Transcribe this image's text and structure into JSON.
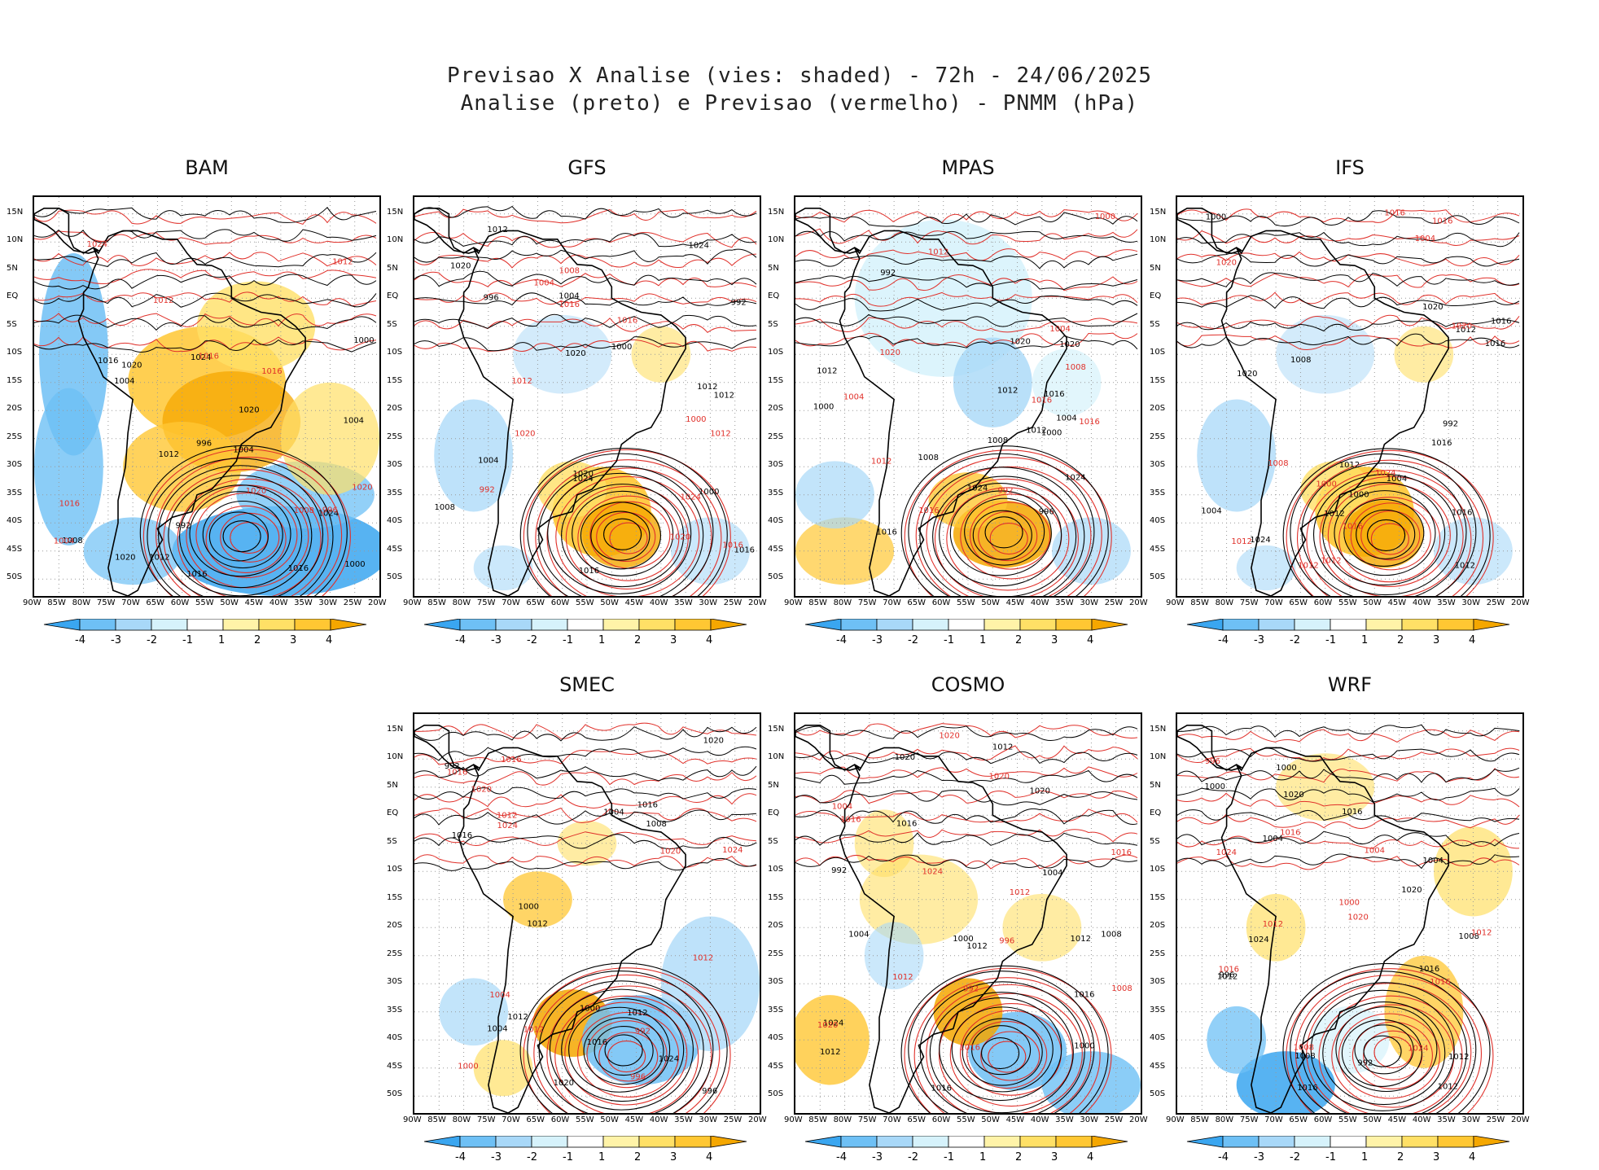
{
  "header": {
    "line1": "Previsao X Analise (vies: shaded) - 72h - 24/06/2025",
    "line2": "Analise (preto) e Previsao (vermelho) - PNMM (hPa)"
  },
  "axes": {
    "lat_labels": [
      "15N",
      "10N",
      "5N",
      "EQ",
      "5S",
      "10S",
      "15S",
      "20S",
      "25S",
      "30S",
      "35S",
      "40S",
      "45S",
      "50S"
    ],
    "lon_labels": [
      "90W",
      "85W",
      "80W",
      "75W",
      "70W",
      "65W",
      "60W",
      "55W",
      "50W",
      "45W",
      "40W",
      "35W",
      "30W",
      "25W",
      "20W"
    ]
  },
  "colorbar": {
    "ticks": [
      "-4",
      "-3",
      "-2",
      "-1",
      "1",
      "2",
      "3",
      "4"
    ],
    "colors": [
      "#3aa6f0",
      "#6ec0f5",
      "#a8d8f8",
      "#d6f2fb",
      "#ffffff",
      "#fff3a8",
      "#ffe066",
      "#ffc733",
      "#f5a700"
    ]
  },
  "colors": {
    "analysis_contour": "#000000",
    "forecast_contour": "#e0302a",
    "negative_bias": "#6ec0f5",
    "positive_bias": "#ffc733"
  },
  "panels": [
    {
      "id": "bam",
      "title": "BAM",
      "bias": "warm-north",
      "isobar_labels": {
        "black": [
          "1012",
          "1016",
          "1016",
          "1020",
          "1020",
          "1024",
          "1012",
          "1016",
          "1008",
          "1004",
          "1004",
          "1000",
          "996",
          "992",
          "1000",
          "1004",
          "1020",
          "1024"
        ],
        "red": [
          "1016",
          "1012",
          "1016",
          "1020",
          "1024",
          "1016",
          "1004",
          "996",
          "1008",
          "1012",
          "1020"
        ]
      }
    },
    {
      "id": "gfs",
      "title": "GFS",
      "bias": "warm-south",
      "isobar_labels": {
        "black": [
          "1012",
          "1016",
          "1012",
          "1020",
          "1020",
          "1024",
          "1020",
          "1008",
          "1004",
          "1000",
          "996",
          "992",
          "1004",
          "1000",
          "1012",
          "1016",
          "1024"
        ],
        "red": [
          "1016",
          "1012",
          "1012",
          "1016",
          "1020",
          "1016",
          "1024",
          "1008",
          "1000",
          "1004",
          "992",
          "1020"
        ]
      }
    },
    {
      "id": "mpas",
      "title": "MPAS",
      "bias": "cool-north",
      "isobar_labels": {
        "black": [
          "1012",
          "1016",
          "1012",
          "1020",
          "1024",
          "1020",
          "1012",
          "1008",
          "1004",
          "992",
          "996",
          "1000",
          "1024",
          "1008",
          "1000",
          "1016"
        ],
        "red": [
          "1016",
          "1012",
          "1016",
          "1012",
          "1020",
          "1000",
          "1004",
          "992",
          "1008",
          "1004",
          "1016"
        ]
      }
    },
    {
      "id": "ifs",
      "title": "IFS",
      "bias": "warm-south",
      "isobar_labels": {
        "black": [
          "1016",
          "1012",
          "1012",
          "1012",
          "1016",
          "1016",
          "1020",
          "1020",
          "1024",
          "1012",
          "1008",
          "1004",
          "1000",
          "992",
          "1004",
          "1000",
          "1016"
        ],
        "red": [
          "1012",
          "1016",
          "1012",
          "1016",
          "1020",
          "1024",
          "1000",
          "1008",
          "1004",
          "1012",
          "1016",
          "1020"
        ]
      }
    },
    {
      "id": "smec",
      "title": "SMEC",
      "bias": "mixed",
      "isobar_labels": {
        "black": [
          "1016",
          "1012",
          "1012",
          "1016",
          "1020",
          "1024",
          "1020",
          "1008",
          "1004",
          "1000",
          "996",
          "992",
          "1004",
          "1000",
          "1016",
          "1012"
        ],
        "red": [
          "1016",
          "1012",
          "1012",
          "1016",
          "1020",
          "1024",
          "1000",
          "1004",
          "996",
          "992",
          "1024",
          "1012",
          "1020"
        ]
      }
    },
    {
      "id": "cosmo",
      "title": "COSMO",
      "bias": "cool-south",
      "isobar_labels": {
        "black": [
          "1012",
          "1016",
          "1012",
          "1016",
          "1012",
          "1020",
          "1024",
          "1020",
          "1008",
          "1004",
          "1000",
          "992",
          "1000",
          "1004",
          "1016",
          "1012"
        ],
        "red": [
          "1016",
          "1012",
          "1012",
          "1016",
          "1020",
          "1024",
          "1020",
          "1008",
          "1004",
          "996",
          "992",
          "1016",
          "1020"
        ]
      }
    },
    {
      "id": "wrf",
      "title": "WRF",
      "bias": "mixed-cool",
      "isobar_labels": {
        "black": [
          "1016",
          "1012",
          "1012",
          "1016",
          "1020",
          "1020",
          "1024",
          "1012",
          "1008",
          "1004",
          "1000",
          "996",
          "992",
          "1004",
          "1000",
          "1008",
          "1016"
        ],
        "red": [
          "1012",
          "1016",
          "1012",
          "1016",
          "1020",
          "1024",
          "1016",
          "1000",
          "1004",
          "996",
          "1008",
          "1024"
        ]
      }
    }
  ]
}
